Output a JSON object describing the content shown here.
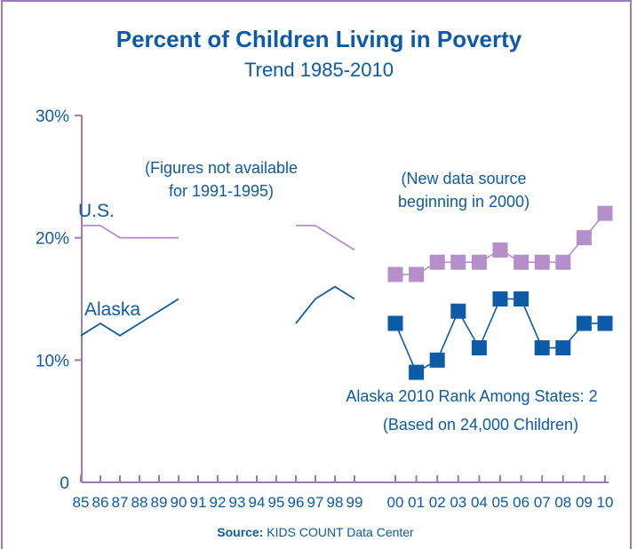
{
  "chart_data": {
    "type": "line",
    "title": "Percent of Children Living in Poverty",
    "subtitle": "Trend 1985-2010",
    "xlabel": "",
    "ylabel": "",
    "ylim": [
      0,
      30
    ],
    "yticks": [
      {
        "value": 0,
        "label": "0"
      },
      {
        "value": 10,
        "label": "10%"
      },
      {
        "value": 20,
        "label": "20%"
      },
      {
        "value": 30,
        "label": "30%"
      }
    ],
    "categories": [
      "85",
      "86",
      "87",
      "88",
      "89",
      "90",
      "91",
      "92",
      "93",
      "94",
      "95",
      "96",
      "97",
      "98",
      "99",
      "00",
      "01",
      "02",
      "03",
      "04",
      "05",
      "06",
      "07",
      "08",
      "09",
      "10"
    ],
    "series": [
      {
        "name": "U.S.",
        "color": "#b48fc9",
        "segments": [
          {
            "x": [
              "85",
              "86",
              "87",
              "88",
              "89",
              "90"
            ],
            "values": [
              21,
              21,
              20,
              20,
              20,
              20
            ],
            "markers": false
          },
          {
            "x": [
              "96",
              "97",
              "98",
              "99"
            ],
            "values": [
              21,
              21,
              20,
              19
            ],
            "markers": false
          },
          {
            "x": [
              "00",
              "01",
              "02",
              "03",
              "04",
              "05",
              "06",
              "07",
              "08",
              "09",
              "10"
            ],
            "values": [
              17,
              17,
              18,
              18,
              18,
              19,
              18,
              18,
              18,
              20,
              22
            ],
            "markers": true
          }
        ]
      },
      {
        "name": "Alaska",
        "color": "#0d5aa7",
        "segments": [
          {
            "x": [
              "85",
              "86",
              "87",
              "88",
              "89",
              "90"
            ],
            "values": [
              12,
              13,
              12,
              13,
              14,
              15
            ],
            "markers": false
          },
          {
            "x": [
              "96",
              "97",
              "98",
              "99"
            ],
            "values": [
              13,
              15,
              16,
              15
            ],
            "markers": false
          },
          {
            "x": [
              "00",
              "01",
              "02",
              "03",
              "04",
              "05",
              "06",
              "07",
              "08",
              "09",
              "10"
            ],
            "values": [
              13,
              9,
              10,
              14,
              11,
              15,
              15,
              11,
              11,
              13,
              13
            ],
            "markers": true
          }
        ]
      }
    ],
    "annotations": {
      "gap_note": [
        "(Figures not available",
        "for 1991-1995)"
      ],
      "new_source_note": [
        "(New data source",
        "beginning in 2000)"
      ],
      "rank_note": [
        "Alaska 2010 Rank Among States: 2",
        "(Based on 24,000 Children)"
      ]
    },
    "source_label": "Source:",
    "source_text": "KIDS COUNT Data Center",
    "colors": {
      "accent": "#0d5aa7",
      "us": "#b48fc9",
      "alaska": "#0d5aa7",
      "frame": "#9b7bb6"
    }
  }
}
